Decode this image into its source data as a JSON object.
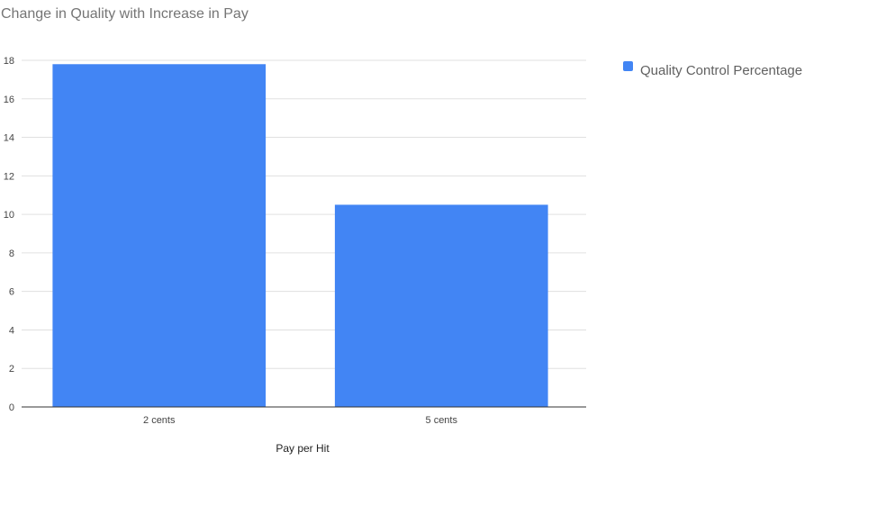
{
  "chart_data": {
    "type": "bar",
    "title": "Change in Quality with Increase in Pay",
    "categories": [
      "2 cents",
      "5 cents"
    ],
    "series": [
      {
        "name": "Quality Control Percentage",
        "values": [
          17.8,
          10.5
        ],
        "color": "#4285f4"
      }
    ],
    "xlabel": "Pay per Hit",
    "ylabel": "",
    "ylim": [
      0,
      18
    ],
    "yticks": [
      0,
      2,
      4,
      6,
      8,
      10,
      12,
      14,
      16,
      18
    ],
    "grid": true,
    "legend": "right"
  }
}
